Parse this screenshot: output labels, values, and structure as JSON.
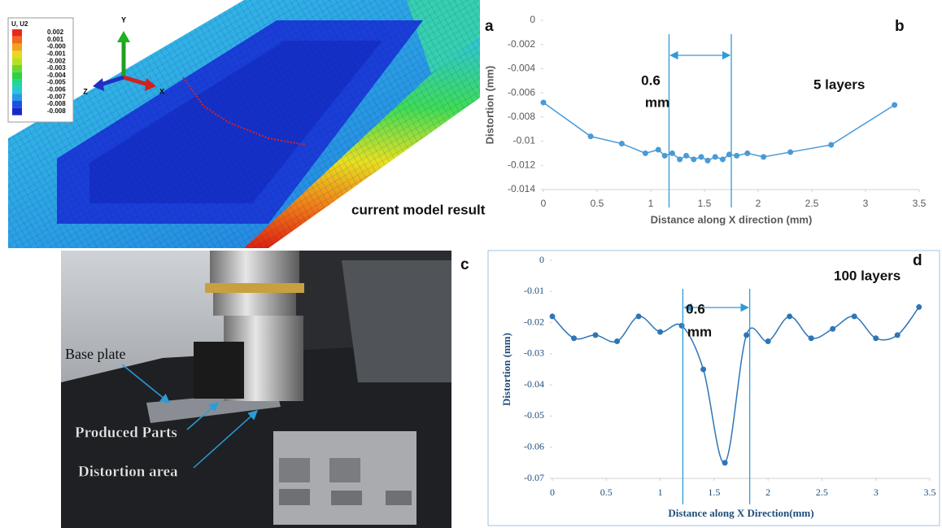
{
  "figure": {
    "panel_a": "a",
    "model_caption": "current model result",
    "legend_title": "U, U2",
    "legend_labels": [
      "0.002",
      "0.001",
      "-0.000",
      "-0.001",
      "-0.002",
      "-0.003",
      "-0.004",
      "-0.005",
      "-0.006",
      "-0.007",
      "-0.008",
      "-0.008"
    ],
    "axis_triad": [
      "Y",
      "X",
      "Z"
    ],
    "panel_c": "c",
    "photo_labels": [
      "Base plate",
      "Produced Parts",
      "Distortion area"
    ]
  },
  "chart_data": [
    {
      "type": "line",
      "panel": "b",
      "x_label": "Distance along X direction (mm)",
      "y_label": "Distortion (mm)",
      "annotation": [
        "0.6",
        "mm"
      ],
      "note": "5 layers",
      "x": [
        0,
        0.44,
        0.73,
        0.95,
        1.07,
        1.13,
        1.2,
        1.27,
        1.33,
        1.4,
        1.47,
        1.53,
        1.6,
        1.67,
        1.73,
        1.8,
        1.9,
        2.05,
        2.3,
        2.68,
        3.27
      ],
      "series": [
        {
          "color": "#4a9ad6",
          "values": [
            -0.0068,
            -0.0096,
            -0.0102,
            -0.011,
            -0.0107,
            -0.0112,
            -0.011,
            -0.0115,
            -0.0112,
            -0.0115,
            -0.0113,
            -0.0116,
            -0.0113,
            -0.0115,
            -0.0111,
            -0.0112,
            -0.011,
            -0.0113,
            -0.0109,
            -0.0103,
            -0.007
          ]
        }
      ],
      "vlines": [
        1.17,
        1.75
      ],
      "xlim": [
        0,
        3.5
      ],
      "xticks": [
        0,
        0.5,
        1,
        1.5,
        2,
        2.5,
        3,
        3.5
      ],
      "ylim": [
        -0.014,
        0
      ],
      "yticks": [
        0,
        -0.002,
        -0.004,
        -0.006,
        -0.008,
        -0.01,
        -0.012,
        -0.014
      ],
      "smooth": false
    },
    {
      "type": "line",
      "panel": "d",
      "x_label": "Distance along X Direction(mm)",
      "y_label": "Distortion (mm)",
      "annotation": [
        "0.6",
        "mm"
      ],
      "note": "100 layers",
      "x": [
        0,
        0.2,
        0.4,
        0.6,
        0.8,
        1,
        1.2,
        1.4,
        1.6,
        1.8,
        2,
        2.2,
        2.4,
        2.6,
        2.8,
        3,
        3.2,
        3.4
      ],
      "series": [
        {
          "color": "#2e75b6",
          "values": [
            -0.018,
            -0.025,
            -0.024,
            -0.026,
            -0.018,
            -0.023,
            -0.021,
            -0.035,
            -0.065,
            -0.024,
            -0.026,
            -0.018,
            -0.025,
            -0.022,
            -0.018,
            -0.025,
            -0.024,
            -0.015
          ]
        }
      ],
      "vlines": [
        1.21,
        1.83
      ],
      "xlim": [
        0,
        3.5
      ],
      "xticks": [
        0,
        0.5,
        1,
        1.5,
        2,
        2.5,
        3,
        3.5
      ],
      "ylim": [
        -0.07,
        0
      ],
      "yticks": [
        0,
        -0.01,
        -0.02,
        -0.03,
        -0.04,
        -0.05,
        -0.06,
        -0.07
      ],
      "smooth": true
    }
  ]
}
